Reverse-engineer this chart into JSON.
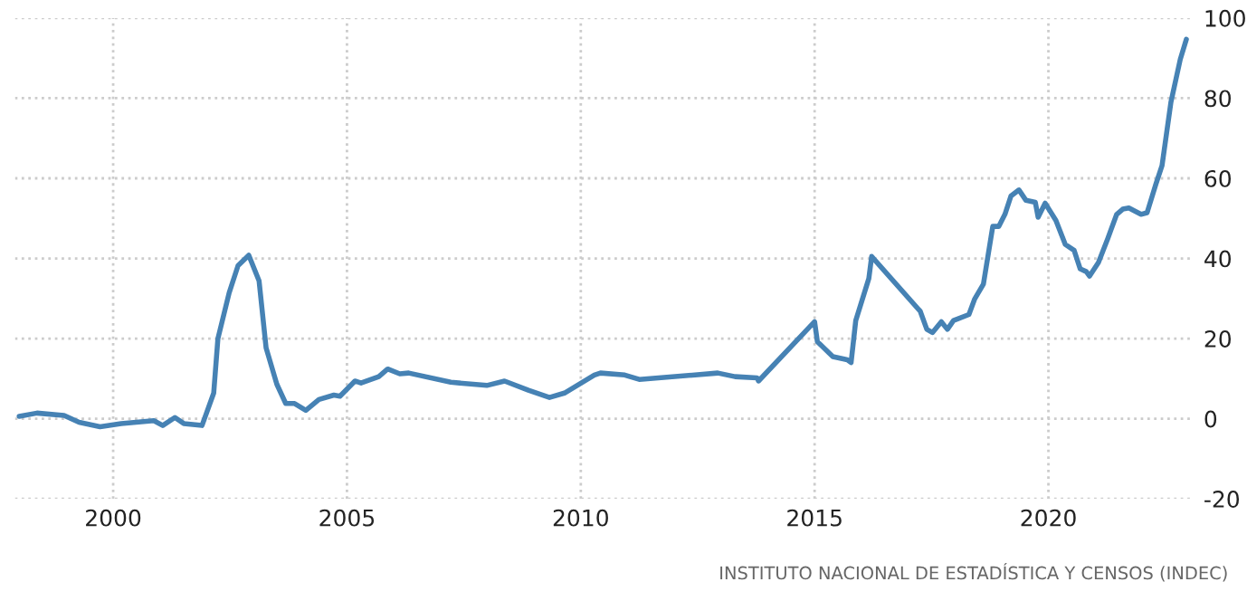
{
  "chart_data": {
    "type": "line",
    "x": [
      1997.99,
      1998.37,
      1998.95,
      1999.27,
      1999.72,
      2000.17,
      2000.87,
      2001.06,
      2001.32,
      2001.51,
      2001.9,
      2002.15,
      2002.24,
      2002.48,
      2002.67,
      2002.9,
      2003.12,
      2003.27,
      2003.5,
      2003.69,
      2003.88,
      2004.12,
      2004.4,
      2004.72,
      2004.85,
      2005.17,
      2005.3,
      2005.68,
      2005.87,
      2006.13,
      2006.32,
      2007.22,
      2007.99,
      2008.37,
      2008.88,
      2009.33,
      2009.65,
      2010.29,
      2010.42,
      2010.94,
      2011.25,
      2012.93,
      2013.3,
      2013.77,
      2013.8,
      2015.0,
      2015.06,
      2015.39,
      2015.7,
      2015.78,
      2015.88,
      2016.16,
      2016.22,
      2017.26,
      2017.4,
      2017.52,
      2017.71,
      2017.84,
      2017.97,
      2018.3,
      2018.42,
      2018.61,
      2018.81,
      2018.94,
      2019.07,
      2019.2,
      2019.37,
      2019.52,
      2019.72,
      2019.78,
      2019.93,
      2020.16,
      2020.36,
      2020.55,
      2020.68,
      2020.81,
      2020.88,
      2021.07,
      2021.27,
      2021.46,
      2021.59,
      2021.72,
      2021.98,
      2022.11,
      2022.3,
      2022.43,
      2022.62,
      2022.82,
      2022.95
    ],
    "series": [
      {
        "color": "#4682b4",
        "values": [
          0.6,
          1.4,
          0.8,
          -0.9,
          -2,
          -1.2,
          -0.5,
          -1.7,
          0.3,
          -1.2,
          -1.7,
          6.4,
          20,
          31.4,
          38.2,
          40.8,
          34.4,
          17.7,
          8.6,
          3.8,
          3.8,
          2.1,
          4.8,
          5.9,
          5.6,
          9.4,
          8.9,
          10.5,
          12.4,
          11.2,
          11.4,
          9.1,
          8.3,
          9.4,
          7.1,
          5.3,
          6.4,
          10.9,
          11.4,
          10.9,
          9.8,
          11.4,
          10.5,
          10.2,
          9.4,
          24.2,
          19.2,
          15.5,
          14.7,
          14,
          24.5,
          35,
          40.5,
          26.8,
          22.3,
          21.5,
          24.2,
          22.3,
          24.5,
          26,
          29.8,
          33.6,
          48,
          48,
          51,
          55.6,
          57.1,
          54.5,
          54,
          50.3,
          53.8,
          49.5,
          43.5,
          42,
          37.4,
          36.7,
          35.6,
          39,
          45,
          51,
          52.3,
          52.6,
          51,
          51.4,
          58.6,
          63.2,
          79,
          89.7,
          94.7
        ]
      }
    ],
    "xlim": [
      1997.9,
      2023.1
    ],
    "xticks": [
      2000,
      2005,
      2010,
      2015,
      2020
    ],
    "ylim": [
      -20,
      100
    ],
    "yticks": [
      -20,
      0,
      20,
      40,
      60,
      80,
      100
    ],
    "grid": true,
    "line_style": "solid",
    "annotations": [
      "INSTITUTO NACIONAL DE ESTADÍSTICA Y CENSOS (INDEC)"
    ]
  }
}
